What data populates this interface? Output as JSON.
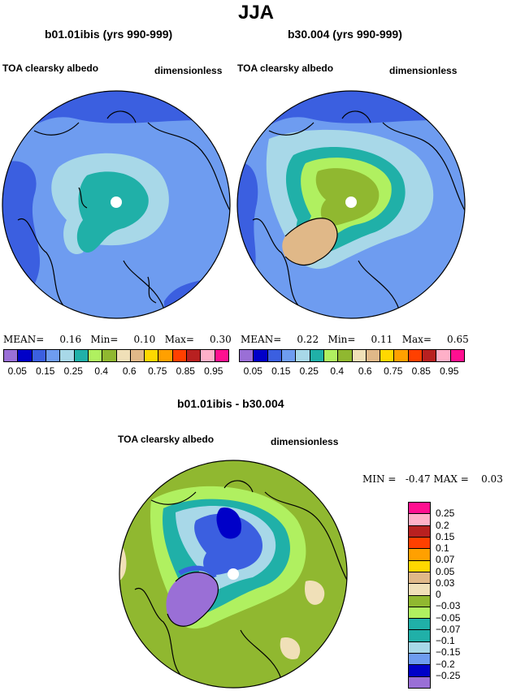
{
  "title": "JJA",
  "panels": [
    {
      "case": "b01.01ibis (yrs 990-999)",
      "variable": "TOA clearsky albedo",
      "units": "dimensionless",
      "mean_label": "MEAN=",
      "mean_value": "0.16",
      "min_label": "Min=",
      "min_value": "0.10",
      "max_label": "Max=",
      "max_value": "0.30"
    },
    {
      "case": "b30.004 (yrs 990-999)",
      "variable": "TOA clearsky albedo",
      "units": "dimensionless",
      "mean_label": "MEAN=",
      "mean_value": "0.22",
      "min_label": "Min=",
      "min_value": "0.11",
      "max_label": "Max=",
      "max_value": "0.65"
    }
  ],
  "colorbar_top": {
    "colors": [
      "#9a6fd6",
      "#0000c8",
      "#3b5fe0",
      "#6e9cf0",
      "#a8d8e8",
      "#20b0a8",
      "#b0f060",
      "#90b830",
      "#f0e0b8",
      "#e0b888",
      "#ffd800",
      "#ffa000",
      "#ff4000",
      "#b82020",
      "#ffb0c8",
      "#ff1090"
    ],
    "labels": [
      "0.05",
      "0.15",
      "0.25",
      "0.4",
      "0.6",
      "0.75",
      "0.85",
      "0.95"
    ]
  },
  "diff": {
    "title": "b01.01ibis - b30.004",
    "variable": "TOA clearsky albedo",
    "units": "dimensionless",
    "min_label": "MIN =",
    "min_value": "-0.47",
    "max_label": "MAX =",
    "max_value": "0.03",
    "colors": [
      "#ff1090",
      "#ffb0c8",
      "#b82020",
      "#ff4000",
      "#ffa000",
      "#ffd800",
      "#e0b888",
      "#f0e0b8",
      "#90b830",
      "#b0f060",
      "#20b0a8",
      "#20b0a8",
      "#a8d8e8",
      "#6e9cf0",
      "#0000c8",
      "#9a6fd6"
    ],
    "labels": [
      "0.25",
      "0.2",
      "0.15",
      "0.1",
      "0.07",
      "0.05",
      "0.03",
      "0",
      "−0.03",
      "−0.05",
      "−0.07",
      "−0.1",
      "−0.15",
      "−0.2",
      "−0.25"
    ]
  }
}
